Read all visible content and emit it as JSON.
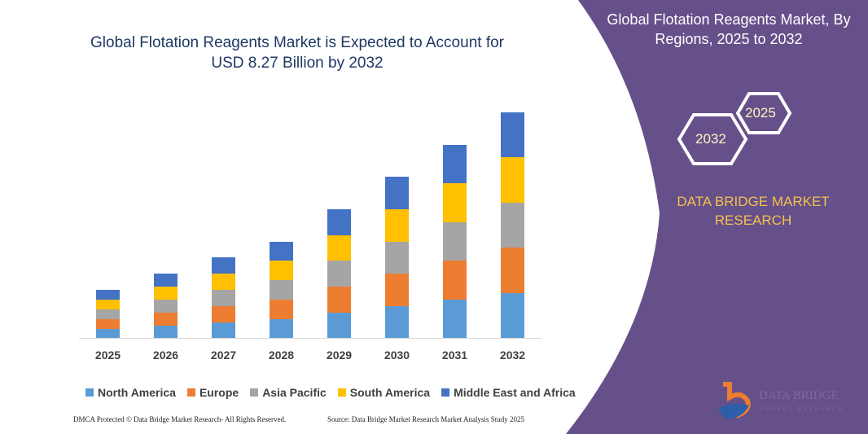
{
  "title": "Global Flotation Reagents Market is Expected to Account for USD 8.27 Billion by 2032",
  "side_panel": {
    "title": "Global Flotation Reagents Market, By Regions, 2025 to 2032",
    "hex_labels": [
      "2025",
      "2032"
    ],
    "brand": "DATA BRIDGE MARKET RESEARCH",
    "logo_text": "DATA BRIDGE MARKET RESEARCH",
    "background": "#66508a"
  },
  "footer": {
    "left": "DMCA Protected © Data Bridge Market Research- All Rights Reserved.",
    "right": "Source: Data Bridge Market Research Market Analysis Study 2025"
  },
  "chart_data": {
    "type": "bar",
    "stacked": true,
    "categories": [
      "2025",
      "2026",
      "2027",
      "2028",
      "2029",
      "2030",
      "2031",
      "2032"
    ],
    "series": [
      {
        "name": "North America",
        "color": "#5b9bd5",
        "values": [
          11,
          15,
          19,
          23,
          31,
          39,
          47,
          55
        ]
      },
      {
        "name": "Europe",
        "color": "#ed7d31",
        "values": [
          12,
          16,
          20,
          24,
          32,
          40,
          48,
          56
        ]
      },
      {
        "name": "Asia Pacific",
        "color": "#a5a5a5",
        "values": [
          12,
          16,
          20,
          24,
          32,
          39,
          47,
          55
        ]
      },
      {
        "name": "South America",
        "color": "#ffc000",
        "values": [
          12,
          16,
          20,
          24,
          31,
          40,
          48,
          56
        ]
      },
      {
        "name": "Middle East and Africa",
        "color": "#4472c4",
        "values": [
          12,
          16,
          20,
          23,
          32,
          40,
          47,
          55
        ]
      }
    ],
    "ylim": [
      0,
      280
    ],
    "grid": false,
    "y_axis_shown": false,
    "legend": "bottom"
  }
}
